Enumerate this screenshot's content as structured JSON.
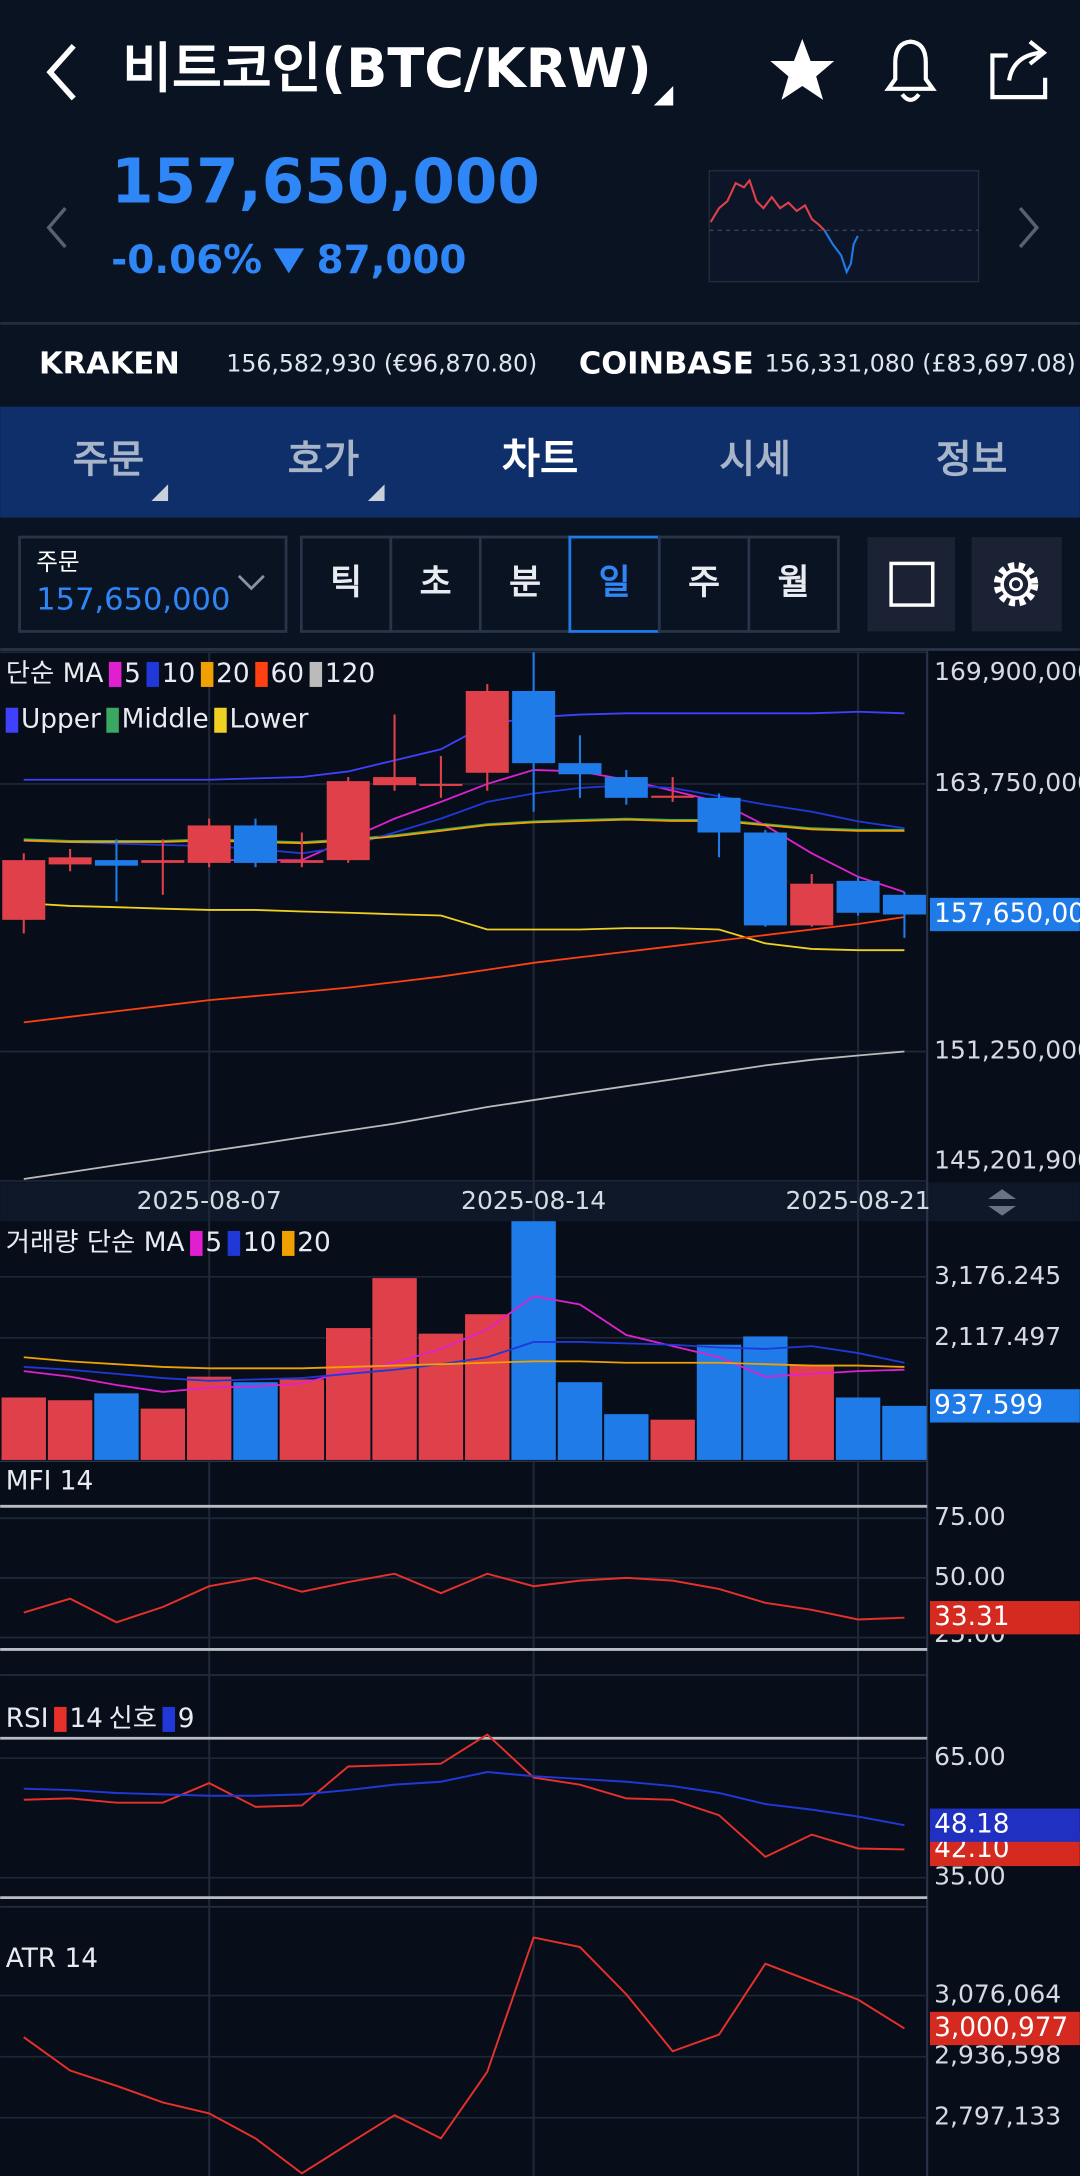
{
  "header": {
    "title": "비트코인(BTC/KRW)",
    "price": "157,650,000",
    "change_pct": "-0.06%",
    "change": "87,000"
  },
  "exchanges": [
    {
      "name": "KRAKEN",
      "price": "156,582,930 (€96,870.80)"
    },
    {
      "name": "COINBASE",
      "price": "156,331,080 (£83,697.08)"
    }
  ],
  "tabs": [
    "주문",
    "호가",
    "차트",
    "시세",
    "정보"
  ],
  "active_tab": 2,
  "order": {
    "label": "주문",
    "price": "157,650,000"
  },
  "intervals": [
    "틱",
    "초",
    "분",
    "일",
    "주",
    "월"
  ],
  "active_interval": 3,
  "chart_data": [
    {
      "type": "candlestick",
      "ma_title": "단순 MA",
      "up_color": "#e0404a",
      "down_color": "#1e7be8",
      "categories": [
        null,
        null,
        null,
        null,
        "2025-08-07",
        null,
        null,
        null,
        null,
        null,
        null,
        "2025-08-14",
        null,
        null,
        null,
        null,
        null,
        null,
        "2025-08-21",
        null
      ],
      "candles": [
        {
          "open": 157400000,
          "high": 160510000,
          "low": 156760000,
          "close": 160190000
        },
        {
          "open": 159990000,
          "high": 160710000,
          "low": 159670000,
          "close": 160320000
        },
        {
          "open": 160190000,
          "high": 161160000,
          "low": 158250000,
          "close": 159930000
        },
        {
          "open": 160060000,
          "high": 161160000,
          "low": 158570000,
          "close": 160190000
        },
        {
          "open": 160060000,
          "high": 162130000,
          "low": 159860000,
          "close": 161810000
        },
        {
          "open": 161810000,
          "high": 162130000,
          "low": 159860000,
          "close": 160060000
        },
        {
          "open": 160060000,
          "high": 161480000,
          "low": 159860000,
          "close": 160190000
        },
        {
          "open": 160190000,
          "high": 164070000,
          "low": 160060000,
          "close": 163880000
        },
        {
          "open": 163690000,
          "high": 166990000,
          "low": 163430000,
          "close": 164070000
        },
        {
          "open": 163690000,
          "high": 165050000,
          "low": 163100000,
          "close": 163750000
        },
        {
          "open": 164270000,
          "high": 168410000,
          "low": 163430000,
          "close": 168090000
        },
        {
          "open": 168090000,
          "high": 169900000,
          "low": 162450000,
          "close": 164720000
        },
        {
          "open": 164720000,
          "high": 166020000,
          "low": 163100000,
          "close": 164200000
        },
        {
          "open": 164070000,
          "high": 164400000,
          "low": 162780000,
          "close": 163100000
        },
        {
          "open": 163100000,
          "high": 164070000,
          "low": 162910000,
          "close": 163200000
        },
        {
          "open": 163100000,
          "high": 163300000,
          "low": 160320000,
          "close": 161480000
        },
        {
          "open": 161480000,
          "high": 161600000,
          "low": 157080000,
          "close": 157140000
        },
        {
          "open": 157140000,
          "high": 159540000,
          "low": 157080000,
          "close": 159090000
        },
        {
          "open": 159220000,
          "high": 159410000,
          "low": 157600000,
          "close": 157730000
        },
        {
          "open": 158570000,
          "high": 158700000,
          "low": 156560000,
          "close": 157650000
        }
      ],
      "value_labels": [
        null,
        null,
        null,
        null,
        null,
        null,
        null,
        null,
        null,
        null,
        null,
        null,
        null,
        null,
        null,
        null,
        null,
        null,
        null,
        "157,650,000"
      ],
      "series": [
        {
          "name": "5",
          "color": "#e020d0",
          "values": [
            null,
            null,
            null,
            null,
            160190000,
            160190000,
            160190000,
            161160000,
            162130000,
            162910000,
            163750000,
            164400000,
            164330000,
            163940000,
            163430000,
            162910000,
            161810000,
            160510000,
            159410000,
            158700000
          ]
        },
        {
          "name": "10",
          "color": "#2038d8",
          "values": [
            161090000,
            161030000,
            160960000,
            160900000,
            160840000,
            160710000,
            160510000,
            160840000,
            161480000,
            162130000,
            162910000,
            163300000,
            163560000,
            163690000,
            163560000,
            163170000,
            162780000,
            162450000,
            162000000,
            161680000
          ]
        },
        {
          "name": "20",
          "color": "#f0a000",
          "values": [
            161110000,
            161040000,
            161040000,
            161040000,
            161110000,
            161040000,
            160980000,
            161110000,
            161300000,
            161560000,
            161820000,
            161950000,
            162020000,
            162080000,
            162020000,
            162020000,
            161820000,
            161630000,
            161560000,
            161560000
          ]
        },
        {
          "name": "60",
          "color": "#ff4010",
          "values": [
            152610000,
            152870000,
            153130000,
            153390000,
            153650000,
            153840000,
            154030000,
            154230000,
            154490000,
            154750000,
            155070000,
            155390000,
            155650000,
            155910000,
            156170000,
            156430000,
            156690000,
            156950000,
            157210000,
            157530000
          ]
        },
        {
          "name": "120",
          "color": "#bbbbbb",
          "values": [
            145290000,
            145620000,
            145940000,
            146260000,
            146590000,
            146910000,
            147240000,
            147560000,
            147880000,
            148270000,
            148660000,
            148980000,
            149310000,
            149630000,
            149950000,
            150280000,
            150600000,
            150860000,
            151060000,
            151250000
          ]
        }
      ],
      "bands": [
        {
          "name": "Upper",
          "color": "#4040ff",
          "values": [
            163940000,
            163940000,
            163940000,
            163940000,
            163940000,
            164010000,
            164070000,
            164330000,
            164850000,
            165370000,
            166530000,
            166860000,
            166990000,
            167050000,
            167050000,
            167050000,
            167050000,
            167050000,
            167120000,
            167050000
          ]
        },
        {
          "name": "Middle",
          "color": "#3aa860",
          "values": [
            161160000,
            161090000,
            161090000,
            161090000,
            161160000,
            161090000,
            161030000,
            161160000,
            161350000,
            161610000,
            161870000,
            162000000,
            162070000,
            162130000,
            162070000,
            162070000,
            161870000,
            161680000,
            161610000,
            161610000
          ]
        },
        {
          "name": "Lower",
          "color": "#f0d020",
          "values": [
            158180000,
            158050000,
            157990000,
            157920000,
            157860000,
            157860000,
            157790000,
            157730000,
            157660000,
            157600000,
            156950000,
            156950000,
            156950000,
            157010000,
            157010000,
            156950000,
            156300000,
            156040000,
            155980000,
            155980000
          ]
        }
      ],
      "ylim": [
        145201900,
        169900000
      ],
      "yticks": [
        {
          "value": 169900000,
          "label": "169,900,000"
        },
        {
          "value": 163750000,
          "label": "163,750,000"
        },
        {
          "value": 151250000,
          "label": "151,250,000"
        },
        {
          "value": 145201900,
          "label": "145,201,900"
        }
      ]
    },
    {
      "type": "bar",
      "title": "거래량 단순 MA",
      "values": [
        1083,
        1035,
        1155,
        890,
        1444,
        1348,
        1396,
        2287,
        3153,
        2190,
        2527,
        4140,
        1348,
        794,
        698,
        1998,
        2142,
        1637,
        1083,
        937.599
      ],
      "series": [
        {
          "name": "5",
          "color": "#e020d0",
          "values": [
            1540,
            1444,
            1300,
            1179,
            1252,
            1276,
            1324,
            1540,
            1685,
            1926,
            2263,
            2840,
            2696,
            2166,
            1974,
            1781,
            1444,
            1492,
            1540,
            1565
          ]
        },
        {
          "name": "10",
          "color": "#2038d8",
          "values": [
            1613,
            1565,
            1492,
            1420,
            1372,
            1396,
            1420,
            1492,
            1565,
            1661,
            1781,
            2046,
            2046,
            2022,
            1998,
            1950,
            1926,
            1974,
            1853,
            1685
          ]
        },
        {
          "name": "20",
          "color": "#f0a000",
          "values": [
            1781,
            1709,
            1661,
            1613,
            1589,
            1589,
            1589,
            1613,
            1637,
            1661,
            1685,
            1709,
            1709,
            1685,
            1685,
            1685,
            1661,
            1637,
            1637,
            1613
          ]
        }
      ],
      "ylim": [
        0,
        4140
      ],
      "yticks": [
        {
          "value": 3176.245,
          "label": "3,176.245"
        },
        {
          "value": 2117.497,
          "label": "2,117.497"
        }
      ]
    },
    {
      "type": "line",
      "title": "MFI 14",
      "color": "#e8302a",
      "values": [
        35.47,
        41.28,
        31.4,
        37.79,
        46.51,
        50,
        44.19,
        48.26,
        51.74,
        43.6,
        51.74,
        46.51,
        48.84,
        50,
        48.84,
        45.35,
        39.53,
        36.63,
        32.56,
        33.31
      ],
      "levels": [
        80,
        20
      ],
      "ylim": [
        18,
        97.7
      ],
      "yticks": [
        {
          "value": 75,
          "label": "75.00"
        },
        {
          "value": 50,
          "label": "50.00"
        },
        {
          "value": 25,
          "label": "25.00"
        }
      ]
    },
    {
      "type": "line",
      "title": "RSI",
      "signal_title": "신호",
      "series": [
        {
          "name": "14",
          "color": "#e8302a",
          "values": [
            54.54,
            54.89,
            53.84,
            53.84,
            58.72,
            52.79,
            53.14,
            62.91,
            63.26,
            63.6,
            70.93,
            60.12,
            58.37,
            54.89,
            54.54,
            50.7,
            40.24,
            45.82,
            42.33,
            42.1
          ],
          "value_labels": [
            null,
            null,
            null,
            null,
            null,
            null,
            null,
            null,
            null,
            null,
            null,
            null,
            null,
            null,
            null,
            null,
            null,
            null,
            null,
            "42.10"
          ]
        },
        {
          "name": "9",
          "color": "#2038d8",
          "values": [
            57.33,
            56.98,
            56.28,
            55.93,
            55.58,
            55.58,
            55.93,
            56.98,
            58.37,
            59.07,
            61.51,
            60.47,
            59.77,
            59.07,
            58.02,
            56.28,
            53.49,
            52.09,
            50.35,
            48.18
          ]
        }
      ],
      "levels": [
        70,
        30
      ],
      "ylim": [
        28.4,
        79.6
      ],
      "yticks": [
        {
          "value": 65,
          "label": "65.00"
        },
        {
          "value": 35,
          "label": "35.00"
        }
      ]
    },
    {
      "type": "line",
      "title": "ATR 14",
      "color": "#e8302a",
      "values": [
        2981000,
        2905000,
        2870000,
        2832000,
        2807000,
        2750000,
        2670000,
        2737000,
        2803000,
        2750000,
        2902000,
        3209000,
        3187000,
        3079000,
        2949000,
        2987000,
        3149000,
        3108000,
        3067000,
        3000977
      ],
      "value_labels": [
        null,
        null,
        null,
        null,
        null,
        null,
        null,
        null,
        null,
        null,
        null,
        null,
        null,
        null,
        null,
        null,
        null,
        null,
        null,
        "3,000,977"
      ],
      "ylim": [
        2664000,
        3275800
      ],
      "yticks": [
        {
          "value": 3076064,
          "label": "3,076,064"
        },
        {
          "value": 2936598,
          "label": "2,936,598"
        },
        {
          "value": 2797133,
          "label": "2,797,133"
        }
      ]
    }
  ]
}
